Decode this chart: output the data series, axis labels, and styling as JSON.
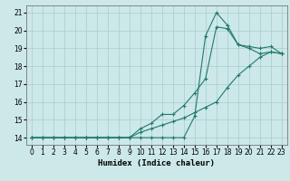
{
  "xlabel": "Humidex (Indice chaleur)",
  "bg_color": "#cce8e8",
  "grid_color": "#aacccc",
  "line_color": "#217a6a",
  "xlim": [
    -0.5,
    23.5
  ],
  "ylim": [
    13.6,
    21.4
  ],
  "xticks": [
    0,
    1,
    2,
    3,
    4,
    5,
    6,
    7,
    8,
    9,
    10,
    11,
    12,
    13,
    14,
    15,
    16,
    17,
    18,
    19,
    20,
    21,
    22,
    23
  ],
  "yticks": [
    14,
    15,
    16,
    17,
    18,
    19,
    20,
    21
  ],
  "line1_x": [
    0,
    1,
    2,
    3,
    4,
    5,
    6,
    7,
    8,
    9,
    10,
    11,
    12,
    13,
    14,
    15,
    16,
    17,
    18,
    19,
    20,
    21,
    22,
    23
  ],
  "line1_y": [
    14.0,
    14.0,
    14.0,
    14.0,
    14.0,
    14.0,
    14.0,
    14.0,
    14.0,
    14.0,
    14.0,
    14.0,
    14.0,
    14.0,
    14.0,
    15.2,
    19.7,
    21.0,
    20.3,
    19.2,
    19.1,
    19.0,
    19.1,
    18.7
  ],
  "line2_x": [
    0,
    1,
    2,
    3,
    4,
    5,
    6,
    7,
    8,
    9,
    10,
    11,
    12,
    13,
    14,
    15,
    16,
    17,
    18,
    19,
    20,
    21,
    22,
    23
  ],
  "line2_y": [
    14.0,
    14.0,
    14.0,
    14.0,
    14.0,
    14.0,
    14.0,
    14.0,
    14.0,
    14.0,
    14.5,
    14.8,
    15.3,
    15.3,
    15.8,
    16.5,
    17.3,
    20.2,
    20.1,
    19.2,
    19.0,
    18.7,
    18.8,
    18.7
  ],
  "line3_x": [
    0,
    1,
    2,
    3,
    4,
    5,
    6,
    7,
    8,
    9,
    10,
    11,
    12,
    13,
    14,
    15,
    16,
    17,
    18,
    19,
    20,
    21,
    22,
    23
  ],
  "line3_y": [
    14.0,
    14.0,
    14.0,
    14.0,
    14.0,
    14.0,
    14.0,
    14.0,
    14.0,
    14.0,
    14.3,
    14.5,
    14.7,
    14.9,
    15.1,
    15.4,
    15.7,
    16.0,
    16.8,
    17.5,
    18.0,
    18.5,
    18.8,
    18.7
  ]
}
